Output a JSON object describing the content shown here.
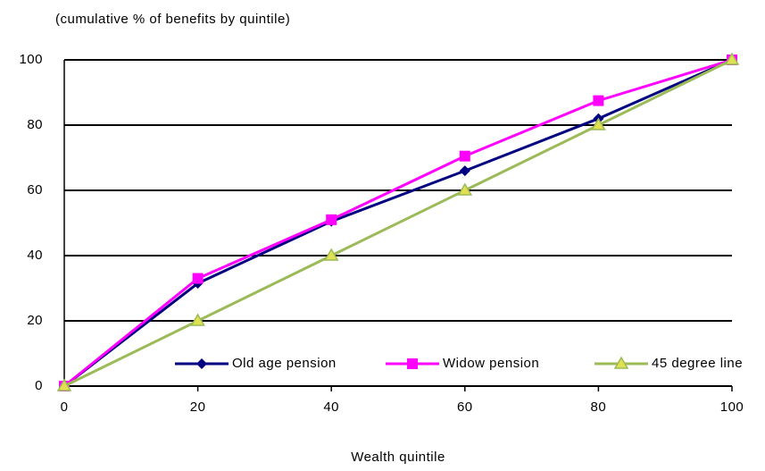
{
  "chart_data": {
    "type": "line",
    "title": "(cumulative % of benefits by quintile)",
    "x_label": "Wealth quintile",
    "x": [
      0,
      20,
      40,
      60,
      80,
      100
    ],
    "series": [
      {
        "name": "Old age pension",
        "color": "#000080",
        "marker": "diamond",
        "values": [
          0,
          31.5,
          50.5,
          66,
          82,
          100
        ]
      },
      {
        "name": "Widow pension",
        "color": "#ff00ff",
        "marker": "square",
        "values": [
          0,
          33,
          51,
          70.5,
          87.5,
          100
        ]
      },
      {
        "name": "45 degree line",
        "color": "#9bbb59",
        "marker": "triangle",
        "values": [
          0,
          20,
          40,
          60,
          80,
          100
        ]
      }
    ],
    "xlim": [
      0,
      100
    ],
    "xticks": [
      0,
      20,
      40,
      60,
      80,
      100
    ],
    "ylim": [
      0,
      100
    ],
    "yticks": [
      0,
      20,
      40,
      60,
      80,
      100
    ],
    "grid": true,
    "legend": "bottom"
  }
}
